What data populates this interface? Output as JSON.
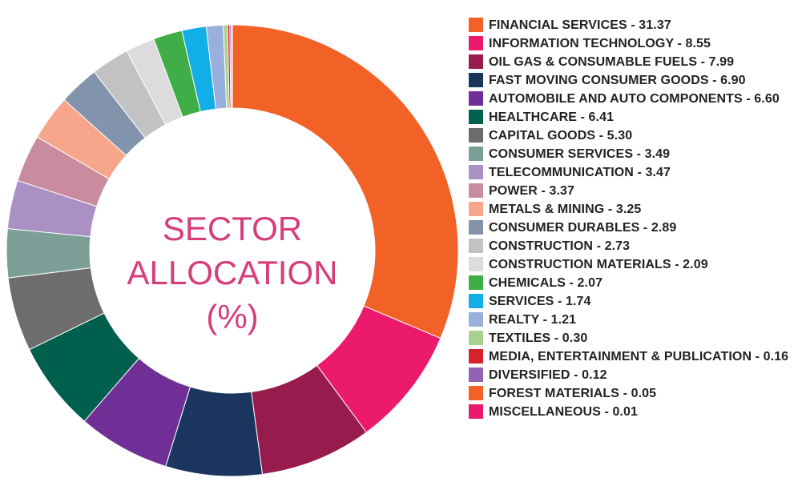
{
  "chart_data": {
    "type": "donut",
    "title_lines": [
      "SECTOR",
      "ALLOCATION",
      "(%)"
    ],
    "title_color": "#d63e7a",
    "legend_position": "right",
    "slices": [
      {
        "label": "FINANCIAL SERVICES - 31.37",
        "name": "FINANCIAL SERVICES",
        "value": 31.37,
        "color": "#f26227"
      },
      {
        "label": "INFORMATION TECHNOLOGY - 8.55",
        "name": "INFORMATION TECHNOLOGY",
        "value": 8.55,
        "color": "#ec1a6d"
      },
      {
        "label": "OIL GAS & CONSUMABLE FUELS - 7.99",
        "name": "OIL GAS & CONSUMABLE FUELS",
        "value": 7.99,
        "color": "#981b4d"
      },
      {
        "label": "FAST MOVING CONSUMER GOODS - 6.90",
        "name": "FAST MOVING CONSUMER GOODS",
        "value": 6.9,
        "color": "#1b365e"
      },
      {
        "label": "AUTOMOBILE AND AUTO COMPONENTS - 6.60",
        "name": "AUTOMOBILE AND AUTO COMPONENTS",
        "value": 6.6,
        "color": "#6f2f96"
      },
      {
        "label": "HEALTHCARE - 6.41",
        "name": "HEALTHCARE",
        "value": 6.41,
        "color": "#015f4e"
      },
      {
        "label": "CAPITAL GOODS - 5.30",
        "name": "CAPITAL GOODS",
        "value": 5.3,
        "color": "#6d6d6d"
      },
      {
        "label": "CONSUMER SERVICES - 3.49",
        "name": "CONSUMER SERVICES",
        "value": 3.49,
        "color": "#7c9f97"
      },
      {
        "label": "TELECOMMUNICATION - 3.47",
        "name": "TELECOMMUNICATION",
        "value": 3.47,
        "color": "#ab90c4"
      },
      {
        "label": "POWER - 3.37",
        "name": "POWER",
        "value": 3.37,
        "color": "#c98c9f"
      },
      {
        "label": "METALS & MINING - 3.25",
        "name": "METALS & MINING",
        "value": 3.25,
        "color": "#f7a68b"
      },
      {
        "label": "CONSUMER DURABLES - 2.89",
        "name": "CONSUMER DURABLES",
        "value": 2.89,
        "color": "#8294ab"
      },
      {
        "label": "CONSTRUCTION - 2.73",
        "name": "CONSTRUCTION",
        "value": 2.73,
        "color": "#c2c2c2"
      },
      {
        "label": "CONSTRUCTION MATERIALS - 2.09",
        "name": "CONSTRUCTION MATERIALS",
        "value": 2.09,
        "color": "#dcdcdc"
      },
      {
        "label": "CHEMICALS - 2.07",
        "name": "CHEMICALS",
        "value": 2.07,
        "color": "#3fae49"
      },
      {
        "label": "SERVICES - 1.74",
        "name": "SERVICES",
        "value": 1.74,
        "color": "#12aee8"
      },
      {
        "label": "REALTY - 1.21",
        "name": "REALTY",
        "value": 1.21,
        "color": "#9ab0dc"
      },
      {
        "label": "TEXTILES - 0.30",
        "name": "TEXTILES",
        "value": 0.3,
        "color": "#a9d18e"
      },
      {
        "label": "MEDIA, ENTERTAINMENT & PUBLICATION - 0.16",
        "name": "MEDIA, ENTERTAINMENT & PUBLICATION",
        "value": 0.16,
        "color": "#d8222b"
      },
      {
        "label": "DIVERSIFIED - 0.12",
        "name": "DIVERSIFIED",
        "value": 0.12,
        "color": "#9362b3"
      },
      {
        "label": "FOREST MATERIALS - 0.05",
        "name": "FOREST MATERIALS",
        "value": 0.05,
        "color": "#f26227"
      },
      {
        "label": "MISCELLANEOUS - 0.01",
        "name": "MISCELLANEOUS",
        "value": 0.01,
        "color": "#ec1a6d"
      }
    ]
  }
}
